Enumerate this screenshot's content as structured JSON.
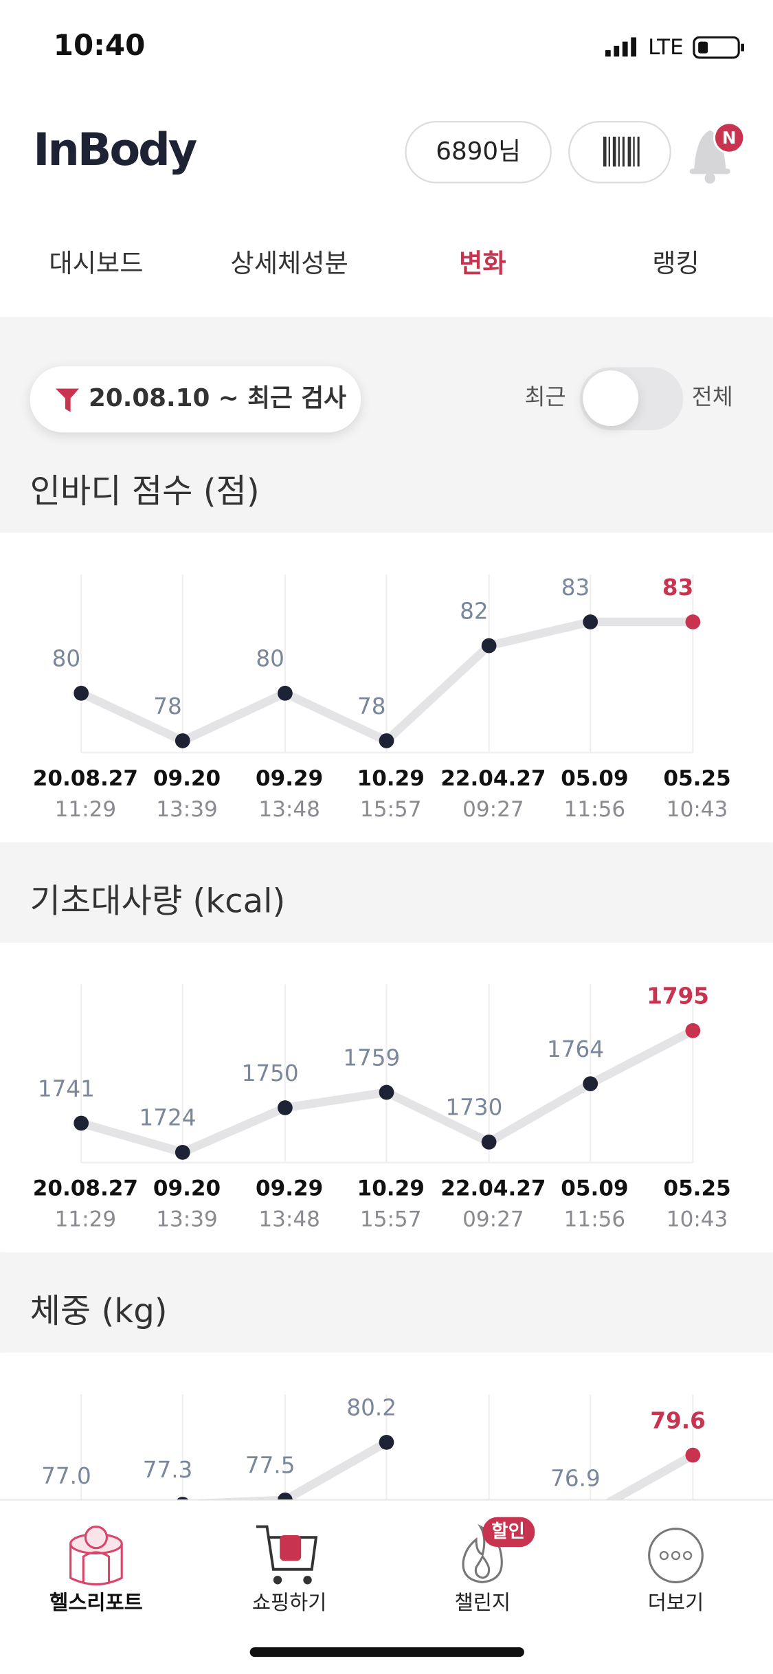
{
  "status_bar": {
    "time": "10:40",
    "network": "LTE"
  },
  "header": {
    "logo": "InBody",
    "user": "6890님",
    "badge": "N"
  },
  "tabs": [
    "대시보드",
    "상세체성분",
    "변화",
    "랭킹"
  ],
  "filter": {
    "range": "20.08.10 ~ 최근 검사",
    "toggle_left": "최근",
    "toggle_right": "전체"
  },
  "chart_data": [
    {
      "type": "line",
      "title": "인바디 점수 (점)",
      "categories": [
        "20.08.27",
        "09.20",
        "09.29",
        "10.29",
        "22.04.27",
        "05.09",
        "05.25"
      ],
      "times": [
        "11:29",
        "13:39",
        "13:48",
        "15:57",
        "09:27",
        "11:56",
        "10:43"
      ],
      "values": [
        80,
        78,
        80,
        78,
        82,
        83,
        83
      ],
      "ylim": [
        77.5,
        85
      ],
      "color": "#e4e4e6",
      "point_color": "#1e2235",
      "highlight_color": "#c8344f"
    },
    {
      "type": "line",
      "title": "기초대사량 (kcal)",
      "categories": [
        "20.08.27",
        "09.20",
        "09.29",
        "10.29",
        "22.04.27",
        "05.09",
        "05.25"
      ],
      "times": [
        "11:29",
        "13:39",
        "13:48",
        "15:57",
        "09:27",
        "11:56",
        "10:43"
      ],
      "values": [
        1741,
        1724,
        1750,
        1759,
        1730,
        1764,
        1795
      ],
      "ylim": [
        1718,
        1822
      ],
      "color": "#e4e4e6",
      "point_color": "#1e2235",
      "highlight_color": "#c8344f"
    },
    {
      "type": "line",
      "title": "체중 (kg)",
      "values": [
        77.0,
        77.3,
        77.5,
        80.2,
        null,
        76.9,
        79.6
      ],
      "value_labels": [
        "77.0",
        "77.3",
        "77.5",
        "80.2",
        null,
        "76.9",
        "79.6"
      ],
      "ylim": [
        74.1,
        82.45
      ],
      "color": "#e4e4e6",
      "point_color": "#1e2235",
      "highlight_color": "#c8344f"
    }
  ],
  "nav": {
    "items": [
      "헬스리포트",
      "쇼핑하기",
      "챌린지",
      "더보기"
    ],
    "badge": "할인"
  }
}
